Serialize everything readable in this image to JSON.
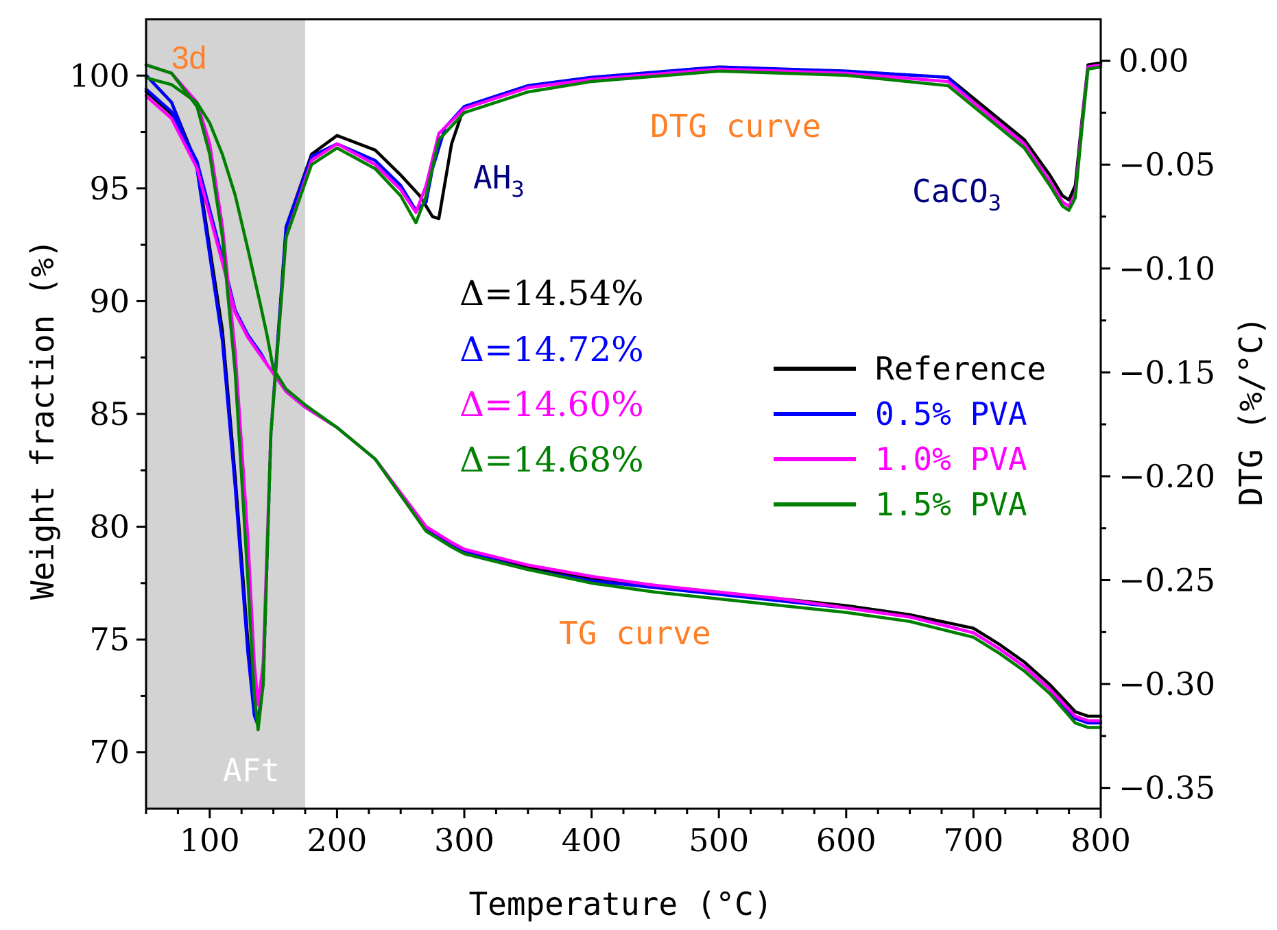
{
  "chart_data": {
    "type": "line",
    "panel_label": "3d",
    "xlabel": "Temperature (°C)",
    "ylabel_left": "Weight fraction (%)",
    "ylabel_right": "DTG (%/°C)",
    "xlim": [
      50,
      800
    ],
    "ylim_left": [
      67.5,
      102.5
    ],
    "ylim_right": [
      -0.36,
      0.02
    ],
    "x_ticks": [
      "100",
      "200",
      "300",
      "400",
      "500",
      "600",
      "700",
      "800"
    ],
    "y_left_ticks": [
      "70",
      "75",
      "80",
      "85",
      "90",
      "95",
      "100"
    ],
    "y_right_ticks": [
      "0.00",
      "−0.05",
      "−0.10",
      "−0.15",
      "−0.20",
      "−0.25",
      "−0.30",
      "−0.35"
    ],
    "shaded_region": {
      "x_range": [
        50,
        175
      ],
      "color": "#d3d3d3"
    },
    "annotations": {
      "afit": "AFt",
      "ah3_base": "AH",
      "ah3_sub": "3",
      "caco3_base": "CaCO",
      "caco3_sub": "3",
      "dtg_curve": "DTG curve",
      "tg_curve": "TG curve"
    },
    "deltas": [
      "Δ=14.54%",
      "Δ=14.72%",
      "Δ=14.60%",
      "Δ=14.68%"
    ],
    "series": [
      {
        "name": "Reference",
        "color": "#000000",
        "tg": {
          "x": [
            50,
            70,
            90,
            110,
            120,
            130,
            140,
            145,
            150,
            160,
            175,
            200,
            230,
            250,
            270,
            290,
            300,
            350,
            400,
            450,
            500,
            550,
            600,
            650,
            700,
            720,
            740,
            760,
            780,
            790,
            800
          ],
          "y": [
            99.3,
            98.3,
            96.1,
            91.8,
            89.5,
            88.4,
            87.6,
            87.2,
            86.8,
            86.0,
            85.3,
            84.4,
            83.0,
            81.5,
            80.0,
            79.3,
            79.0,
            78.2,
            77.7,
            77.4,
            77.1,
            76.8,
            76.5,
            76.1,
            75.5,
            74.8,
            74.0,
            73.0,
            71.8,
            71.6,
            71.6
          ]
        },
        "dtg": {
          "x": [
            50,
            70,
            90,
            110,
            120,
            130,
            135,
            138,
            142,
            148,
            160,
            180,
            200,
            230,
            250,
            265,
            275,
            280,
            290,
            300,
            350,
            400,
            500,
            600,
            680,
            700,
            720,
            740,
            760,
            770,
            775,
            780,
            785,
            790,
            800
          ],
          "y": [
            -0.007,
            -0.02,
            -0.05,
            -0.13,
            -0.2,
            -0.28,
            -0.313,
            -0.318,
            -0.3,
            -0.18,
            -0.08,
            -0.045,
            -0.036,
            -0.043,
            -0.055,
            -0.065,
            -0.075,
            -0.076,
            -0.04,
            -0.022,
            -0.012,
            -0.008,
            -0.003,
            -0.005,
            -0.008,
            -0.018,
            -0.028,
            -0.038,
            -0.055,
            -0.065,
            -0.067,
            -0.06,
            -0.03,
            -0.002,
            -0.001
          ]
        }
      },
      {
        "name": "0.5% PVA",
        "color": "#0000ff",
        "tg": {
          "x": [
            50,
            70,
            90,
            110,
            120,
            130,
            140,
            145,
            150,
            160,
            175,
            200,
            230,
            250,
            270,
            290,
            300,
            350,
            400,
            450,
            500,
            550,
            600,
            650,
            700,
            720,
            740,
            760,
            780,
            790,
            800
          ],
          "y": [
            99.4,
            98.4,
            96.2,
            91.9,
            89.6,
            88.5,
            87.7,
            87.2,
            86.8,
            86.0,
            85.3,
            84.4,
            83.0,
            81.4,
            79.9,
            79.2,
            78.9,
            78.1,
            77.6,
            77.3,
            77.0,
            76.7,
            76.4,
            76.0,
            75.3,
            74.6,
            73.8,
            72.8,
            71.5,
            71.3,
            71.3
          ]
        },
        "dtg": {
          "x": [
            50,
            70,
            90,
            110,
            120,
            130,
            135,
            138,
            142,
            148,
            160,
            180,
            200,
            230,
            250,
            262,
            270,
            275,
            285,
            300,
            350,
            400,
            500,
            600,
            680,
            700,
            720,
            740,
            760,
            770,
            775,
            780,
            785,
            790,
            800
          ],
          "y": [
            -0.007,
            -0.02,
            -0.052,
            -0.135,
            -0.205,
            -0.285,
            -0.315,
            -0.32,
            -0.3,
            -0.18,
            -0.08,
            -0.046,
            -0.04,
            -0.048,
            -0.06,
            -0.072,
            -0.068,
            -0.052,
            -0.032,
            -0.022,
            -0.012,
            -0.008,
            -0.003,
            -0.005,
            -0.008,
            -0.02,
            -0.03,
            -0.04,
            -0.058,
            -0.068,
            -0.07,
            -0.064,
            -0.032,
            -0.003,
            -0.002
          ]
        }
      },
      {
        "name": "1.0% PVA",
        "color": "#ff00ff",
        "tg": {
          "x": [
            50,
            70,
            90,
            110,
            120,
            130,
            140,
            145,
            150,
            160,
            175,
            200,
            230,
            250,
            270,
            290,
            300,
            350,
            400,
            450,
            500,
            550,
            600,
            650,
            700,
            720,
            740,
            760,
            780,
            790,
            800
          ],
          "y": [
            99.1,
            98.1,
            95.9,
            91.7,
            89.5,
            88.4,
            87.6,
            87.2,
            86.8,
            86.0,
            85.3,
            84.4,
            83.0,
            81.5,
            80.0,
            79.3,
            79.0,
            78.3,
            77.8,
            77.4,
            77.1,
            76.8,
            76.4,
            76.0,
            75.3,
            74.6,
            73.8,
            72.8,
            71.6,
            71.4,
            71.4
          ]
        },
        "dtg": {
          "x": [
            50,
            70,
            90,
            100,
            110,
            120,
            130,
            135,
            138,
            142,
            148,
            160,
            180,
            200,
            230,
            250,
            262,
            270,
            280,
            300,
            350,
            400,
            500,
            600,
            680,
            700,
            720,
            740,
            760,
            770,
            775,
            780,
            785,
            790,
            800
          ],
          "y": [
            -0.002,
            -0.006,
            -0.02,
            -0.04,
            -0.08,
            -0.14,
            -0.23,
            -0.29,
            -0.31,
            -0.29,
            -0.18,
            -0.085,
            -0.048,
            -0.04,
            -0.05,
            -0.062,
            -0.073,
            -0.06,
            -0.035,
            -0.023,
            -0.013,
            -0.009,
            -0.004,
            -0.006,
            -0.01,
            -0.02,
            -0.03,
            -0.04,
            -0.058,
            -0.068,
            -0.07,
            -0.064,
            -0.032,
            -0.003,
            -0.002
          ]
        }
      },
      {
        "name": "1.5% PVA",
        "color": "#008000",
        "tg": {
          "x": [
            50,
            70,
            90,
            100,
            110,
            120,
            130,
            140,
            145,
            150,
            160,
            175,
            200,
            230,
            250,
            270,
            290,
            300,
            350,
            400,
            450,
            500,
            550,
            600,
            650,
            700,
            720,
            740,
            760,
            780,
            790,
            800
          ],
          "y": [
            99.9,
            99.6,
            98.8,
            97.9,
            96.5,
            94.7,
            92.3,
            89.8,
            88.5,
            87.0,
            86.1,
            85.4,
            84.4,
            83.0,
            81.4,
            79.8,
            79.1,
            78.8,
            78.1,
            77.5,
            77.1,
            76.8,
            76.5,
            76.2,
            75.8,
            75.1,
            74.4,
            73.6,
            72.6,
            71.3,
            71.1,
            71.1
          ]
        },
        "dtg": {
          "x": [
            50,
            70,
            90,
            100,
            110,
            120,
            130,
            135,
            138,
            142,
            148,
            160,
            180,
            200,
            230,
            250,
            262,
            270,
            280,
            300,
            350,
            400,
            500,
            600,
            680,
            700,
            720,
            740,
            760,
            770,
            775,
            780,
            785,
            790,
            800
          ],
          "y": [
            -0.002,
            -0.006,
            -0.022,
            -0.045,
            -0.085,
            -0.15,
            -0.25,
            -0.305,
            -0.322,
            -0.3,
            -0.18,
            -0.085,
            -0.05,
            -0.042,
            -0.052,
            -0.065,
            -0.078,
            -0.065,
            -0.038,
            -0.025,
            -0.015,
            -0.01,
            -0.005,
            -0.007,
            -0.012,
            -0.022,
            -0.032,
            -0.042,
            -0.06,
            -0.07,
            -0.072,
            -0.066,
            -0.034,
            -0.004,
            -0.003
          ]
        }
      }
    ],
    "legend_position": "right-center"
  }
}
